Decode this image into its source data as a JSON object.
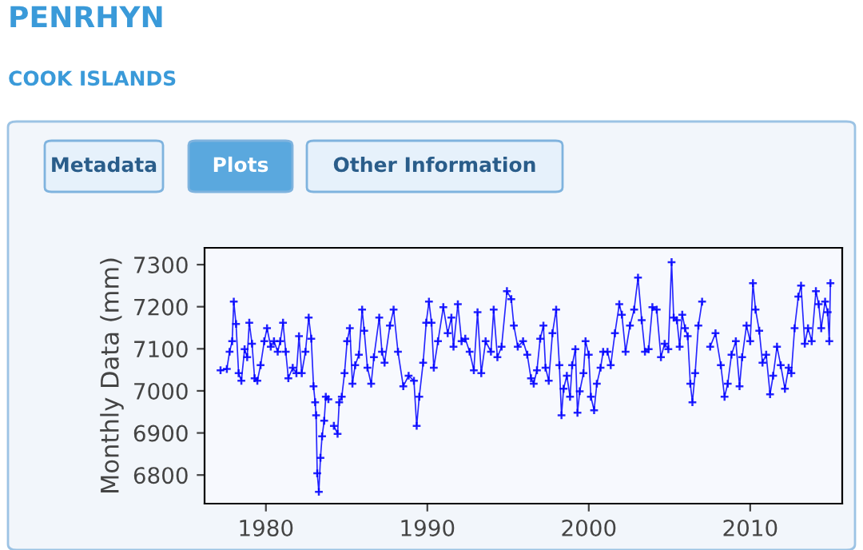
{
  "chart_data": {
    "type": "line",
    "title": "PENRHYN",
    "subtitle": "COOK ISLANDS",
    "annotations": [
      "Metadata",
      "Plots",
      "Other Information"
    ],
    "ylabel": "Monthly Data (mm)",
    "xlim": [
      1976.2,
      2015.7
    ],
    "xticks": [
      1980,
      1990,
      2000,
      2010
    ],
    "ylim": [
      6732,
      7340
    ],
    "yticks": [
      6800,
      6900,
      7000,
      7100,
      7200,
      7300
    ],
    "grid": false,
    "legend": false,
    "marker": "cross",
    "line_style": "solid",
    "series": [
      {
        "color": "#0000ff",
        "x": [
          1977.19,
          1977.58,
          1977.75,
          1977.91,
          1978.01,
          1978.15,
          1978.31,
          1978.48,
          1978.68,
          1978.84,
          1978.97,
          1979.14,
          1979.3,
          1979.47,
          1979.67,
          1979.9,
          1980.07,
          1980.3,
          1980.5,
          1980.73,
          1980.89,
          1981.06,
          1981.23,
          1981.39,
          1981.66,
          1981.89,
          1982.05,
          1982.22,
          1982.45,
          1982.65,
          1982.81,
          1982.95,
          1983.05,
          1983.11,
          1983.18,
          1983.28,
          1983.38,
          1983.48,
          1983.61,
          1983.71,
          1983.87,
          1984.0,
          1984.21,
          1984.44,
          1984.54,
          1984.7,
          1984.87,
          1985.03,
          1985.2,
          1985.36,
          1985.53,
          1985.76,
          1985.96,
          1986.09,
          1986.29,
          1986.52,
          1986.69,
          1987.02,
          1987.19,
          1987.35,
          1987.68,
          1987.91,
          1988.18,
          1988.51,
          1988.84,
          1989.17,
          1989.34,
          1989.5,
          1989.74,
          1989.93,
          1990.1,
          1990.26,
          1990.4,
          1990.66,
          1990.99,
          1991.26,
          1991.49,
          1991.62,
          1991.89,
          1992.12,
          1992.35,
          1992.62,
          1992.88,
          1993.11,
          1993.34,
          1993.61,
          1993.94,
          1994.11,
          1994.34,
          1994.6,
          1994.93,
          1995.2,
          1995.36,
          1995.6,
          1995.93,
          1996.19,
          1996.42,
          1996.59,
          1996.79,
          1996.99,
          1997.19,
          1997.32,
          1997.52,
          1997.75,
          1997.98,
          1998.18,
          1998.31,
          1998.44,
          1998.64,
          1998.84,
          1998.97,
          1999.17,
          1999.3,
          1999.44,
          1999.67,
          1999.8,
          2000.0,
          2000.13,
          2000.33,
          2000.5,
          2000.73,
          2000.89,
          2001.16,
          2001.36,
          2001.62,
          2001.89,
          2002.05,
          2002.28,
          2002.55,
          2002.81,
          2003.05,
          2003.28,
          2003.48,
          2003.71,
          2003.94,
          2004.21,
          2004.47,
          2004.7,
          2004.93,
          2005.13,
          2005.26,
          2005.46,
          2005.63,
          2005.79,
          2005.96,
          2006.13,
          2006.29,
          2006.42,
          2006.59,
          2006.79,
          2007.02,
          2007.4,
          2007.52,
          2007.85,
          2008.18,
          2008.41,
          2008.61,
          2008.84,
          2009.11,
          2009.34,
          2009.5,
          2009.77,
          2010.0,
          2010.17,
          2010.33,
          2010.56,
          2010.76,
          2010.99,
          2011.23,
          2011.42,
          2011.66,
          2011.89,
          2012.15,
          2012.38,
          2012.55,
          2012.75,
          2012.98,
          2013.15,
          2013.38,
          2013.58,
          2013.81,
          2014.07,
          2014.24,
          2014.4,
          2014.64,
          2014.8,
          2014.9,
          2014.97
        ],
        "values": [
          7049,
          7052,
          7093,
          7118,
          7212,
          7159,
          7042,
          7024,
          7099,
          7080,
          7162,
          7112,
          7030,
          7024,
          7061,
          7118,
          7149,
          7105,
          7118,
          7093,
          7118,
          7162,
          7093,
          7030,
          7055,
          7042,
          7130,
          7042,
          7093,
          7174,
          7124,
          7011,
          6973,
          6942,
          6804,
          6760,
          6841,
          6892,
          6929,
          6986,
          6980,
          null,
          6917,
          6898,
          6973,
          6986,
          7042,
          7118,
          7149,
          7017,
          7061,
          7086,
          7193,
          7143,
          7055,
          7017,
          7080,
          7174,
          7093,
          7067,
          7155,
          7193,
          7093,
          7011,
          7036,
          7024,
          6917,
          6986,
          7067,
          7162,
          7212,
          7162,
          7055,
          7118,
          7199,
          7137,
          7174,
          7105,
          7206,
          7118,
          7124,
          7093,
          7049,
          7187,
          7042,
          7118,
          7093,
          7193,
          7080,
          7105,
          7237,
          7218,
          7155,
          7105,
          7118,
          7086,
          7030,
          7017,
          7049,
          7124,
          7155,
          7055,
          7024,
          7137,
          7193,
          7061,
          6942,
          7005,
          7036,
          6986,
          7061,
          7099,
          6948,
          6999,
          7042,
          7118,
          7086,
          6986,
          6954,
          7017,
          7055,
          7093,
          7093,
          7061,
          7137,
          7206,
          7181,
          7093,
          7155,
          7193,
          7269,
          7168,
          7093,
          7099,
          7199,
          7193,
          7080,
          7112,
          7099,
          7306,
          7174,
          7168,
          7105,
          7181,
          7149,
          7130,
          7017,
          6973,
          7042,
          7155,
          7212,
          null,
          7105,
          7137,
          7061,
          6986,
          7017,
          7086,
          7118,
          7011,
          7080,
          7155,
          7118,
          7256,
          7193,
          7143,
          7067,
          7086,
          6992,
          7036,
          7105,
          7061,
          7005,
          7055,
          7042,
          7149,
          7224,
          7250,
          7112,
          7149,
          7118,
          7237,
          7206,
          7149,
          7212,
          7187,
          7118,
          7256
        ]
      }
    ]
  }
}
